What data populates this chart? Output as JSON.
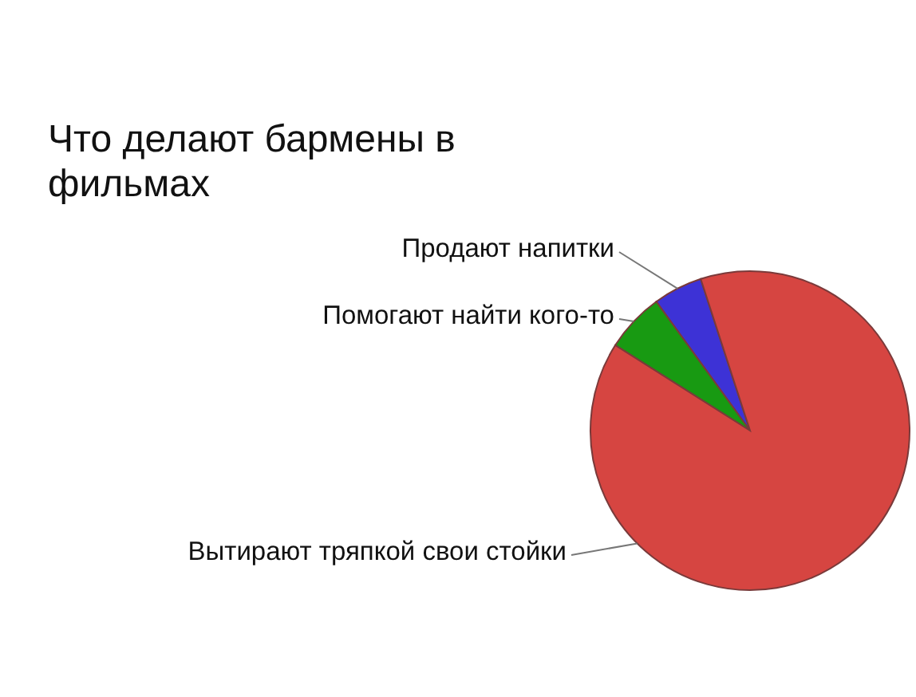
{
  "chart_data": {
    "type": "pie",
    "title": "Что делают бармены в фильмах",
    "categories": [
      "Продают напитки",
      "Помогают найти кого-то",
      "Вытирают тряпкой свои стойки"
    ],
    "values": [
      5,
      6,
      89
    ],
    "colors": [
      "#3d32d6",
      "#189a12",
      "#d64541"
    ]
  }
}
